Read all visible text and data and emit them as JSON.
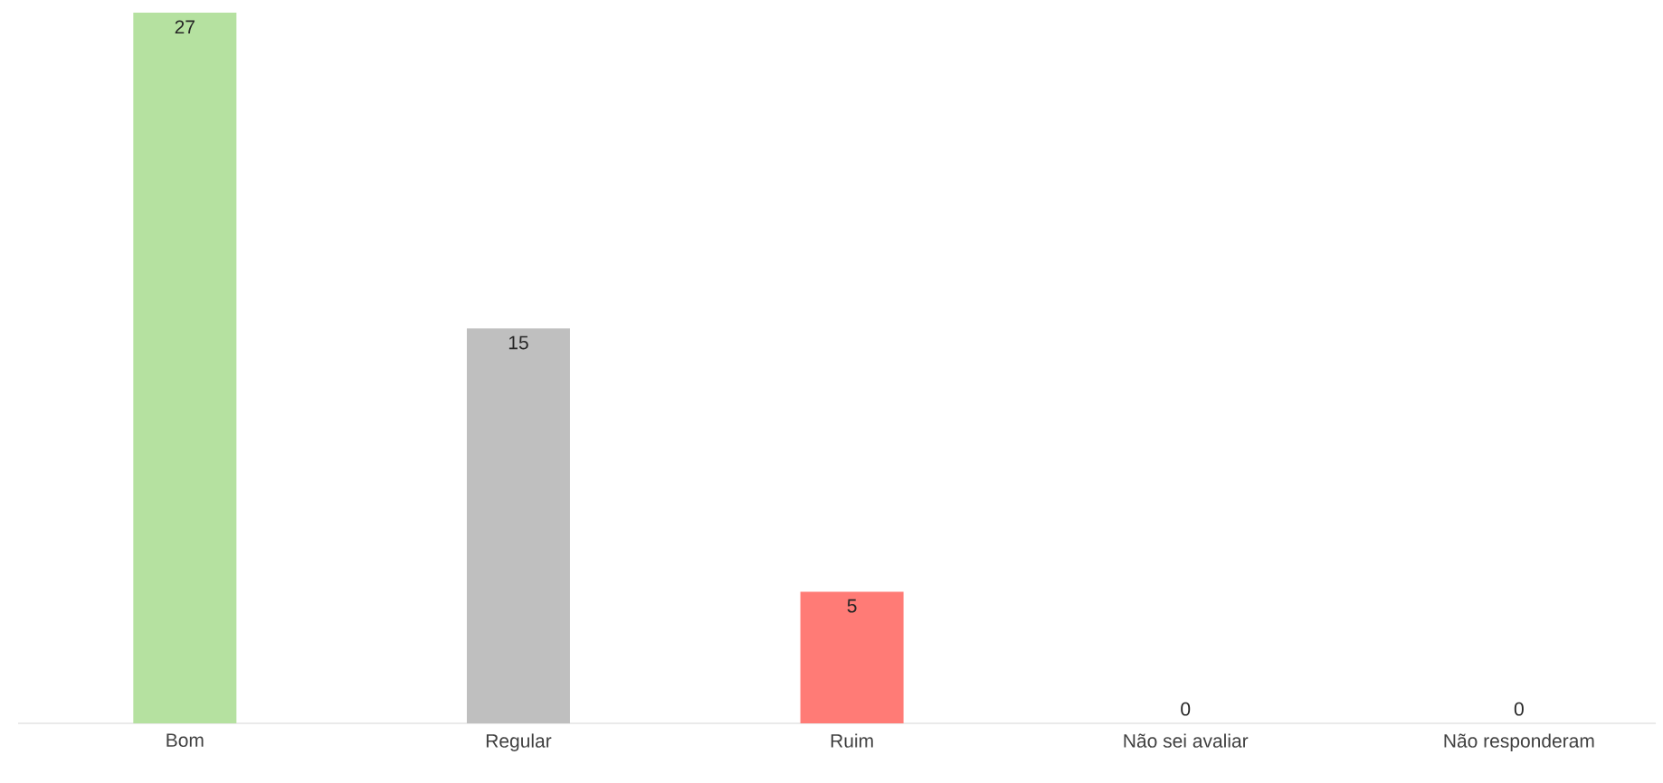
{
  "chart_data": {
    "type": "bar",
    "categories": [
      "Bom",
      "Regular",
      "Ruim",
      "Não sei avaliar",
      "Não responderam"
    ],
    "values": [
      27,
      15,
      5,
      0,
      0
    ],
    "colors": [
      "#b5e1a0",
      "#bfbfbf",
      "#ff7b76",
      "#bfbfbf",
      "#bfbfbf"
    ],
    "data_labels": true
  }
}
